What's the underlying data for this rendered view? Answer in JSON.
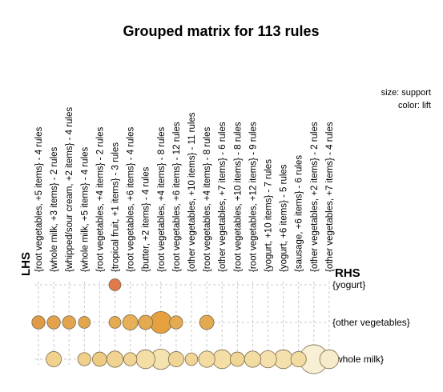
{
  "chart_data": {
    "type": "grouped-matrix",
    "title": "Grouped matrix for 113 rules",
    "legend": {
      "size": "size: support",
      "color": "color: lift"
    },
    "lhs_label": "LHS",
    "rhs_label": "RHS",
    "lhs_groups": [
      "{root vegetables, +5 items} - 4 rules",
      "{whole milk, +3 items} - 2 rules",
      "{whipped/sour cream, +2 items} - 4 rules",
      "{whole milk, +5 items} - 4 rules",
      "{root vegetables, +4 items} - 2 rules",
      "{tropical fruit, +1 items} - 3 rules",
      "{root vegetables, +6 items} - 4 rules",
      "{butter, +2 items} - 4 rules",
      "{root vegetables, +4 items} - 8 rules",
      "{root vegetables, +6 items} - 12 rules",
      "{other vegetables, +10 items} - 11 rules",
      "{root vegetables, +4 items} - 8 rules",
      "{other vegetables, +7 items} - 6 rules",
      "{root vegetables, +10 items} - 8 rules",
      "{root vegetables, +12 items} - 9 rules",
      "{yogurt, +10 items} - 7 rules",
      "{yogurt, +6 items} - 5 rules",
      "{sausage, +6 items} - 6 rules",
      "{other vegetables, +2 items} - 2 rules",
      "{other vegetables, +7 items} - 4 rules"
    ],
    "rhs_items": [
      "{yogurt}",
      "{other vegetables}",
      "{whole milk}"
    ],
    "cells": [
      {
        "lhs": 5,
        "rhs": 0,
        "support": 0.4,
        "lift": 0.95,
        "color": "#e07a4a"
      },
      {
        "lhs": 0,
        "rhs": 1,
        "support": 0.5,
        "lift": 0.85,
        "color": "#e09a48"
      },
      {
        "lhs": 1,
        "rhs": 1,
        "support": 0.5,
        "lift": 0.82,
        "color": "#e2a24e"
      },
      {
        "lhs": 2,
        "rhs": 1,
        "support": 0.5,
        "lift": 0.8,
        "color": "#e2a54e"
      },
      {
        "lhs": 3,
        "rhs": 1,
        "support": 0.4,
        "lift": 0.8,
        "color": "#e2a64f"
      },
      {
        "lhs": 5,
        "rhs": 1,
        "support": 0.4,
        "lift": 0.75,
        "color": "#e4ab52"
      },
      {
        "lhs": 6,
        "rhs": 1,
        "support": 0.7,
        "lift": 0.72,
        "color": "#e5b058"
      },
      {
        "lhs": 7,
        "rhs": 1,
        "support": 0.6,
        "lift": 0.7,
        "color": "#e4aa50"
      },
      {
        "lhs": 8,
        "rhs": 1,
        "support": 1.5,
        "lift": 0.78,
        "color": "#e6a040"
      },
      {
        "lhs": 9,
        "rhs": 1,
        "support": 0.5,
        "lift": 0.75,
        "color": "#e4ab52"
      },
      {
        "lhs": 11,
        "rhs": 1,
        "support": 0.6,
        "lift": 0.75,
        "color": "#e4aa50"
      },
      {
        "lhs": 1,
        "rhs": 2,
        "support": 0.7,
        "lift": 0.35,
        "color": "#f0d28e"
      },
      {
        "lhs": 3,
        "rhs": 2,
        "support": 0.5,
        "lift": 0.35,
        "color": "#f0d08a"
      },
      {
        "lhs": 4,
        "rhs": 2,
        "support": 0.6,
        "lift": 0.45,
        "color": "#eecb80"
      },
      {
        "lhs": 5,
        "rhs": 2,
        "support": 0.8,
        "lift": 0.35,
        "color": "#f0d390"
      },
      {
        "lhs": 6,
        "rhs": 2,
        "support": 0.5,
        "lift": 0.3,
        "color": "#f1d594"
      },
      {
        "lhs": 7,
        "rhs": 2,
        "support": 1.1,
        "lift": 0.25,
        "color": "#f3dea6"
      },
      {
        "lhs": 8,
        "rhs": 2,
        "support": 1.3,
        "lift": 0.2,
        "color": "#f4e2b0"
      },
      {
        "lhs": 9,
        "rhs": 2,
        "support": 0.7,
        "lift": 0.3,
        "color": "#f1d596"
      },
      {
        "lhs": 10,
        "rhs": 2,
        "support": 0.45,
        "lift": 0.3,
        "color": "#f1d594"
      },
      {
        "lhs": 11,
        "rhs": 2,
        "support": 0.8,
        "lift": 0.25,
        "color": "#f3dca2"
      },
      {
        "lhs": 12,
        "rhs": 2,
        "support": 1.1,
        "lift": 0.25,
        "color": "#f3dea6"
      },
      {
        "lhs": 13,
        "rhs": 2,
        "support": 0.6,
        "lift": 0.3,
        "color": "#f1d594"
      },
      {
        "lhs": 14,
        "rhs": 2,
        "support": 0.8,
        "lift": 0.25,
        "color": "#f3dca2"
      },
      {
        "lhs": 15,
        "rhs": 2,
        "support": 0.9,
        "lift": 0.2,
        "color": "#f4e0ac"
      },
      {
        "lhs": 16,
        "rhs": 2,
        "support": 1.1,
        "lift": 0.2,
        "color": "#f4e0ac"
      },
      {
        "lhs": 17,
        "rhs": 2,
        "support": 0.7,
        "lift": 0.25,
        "color": "#f3dca2"
      },
      {
        "lhs": 18,
        "rhs": 2,
        "support": 2.7,
        "lift": 0.05,
        "color": "#f8efd4"
      },
      {
        "lhs": 19,
        "rhs": 2,
        "support": 1.1,
        "lift": 0.1,
        "color": "#f6ebca"
      }
    ]
  }
}
